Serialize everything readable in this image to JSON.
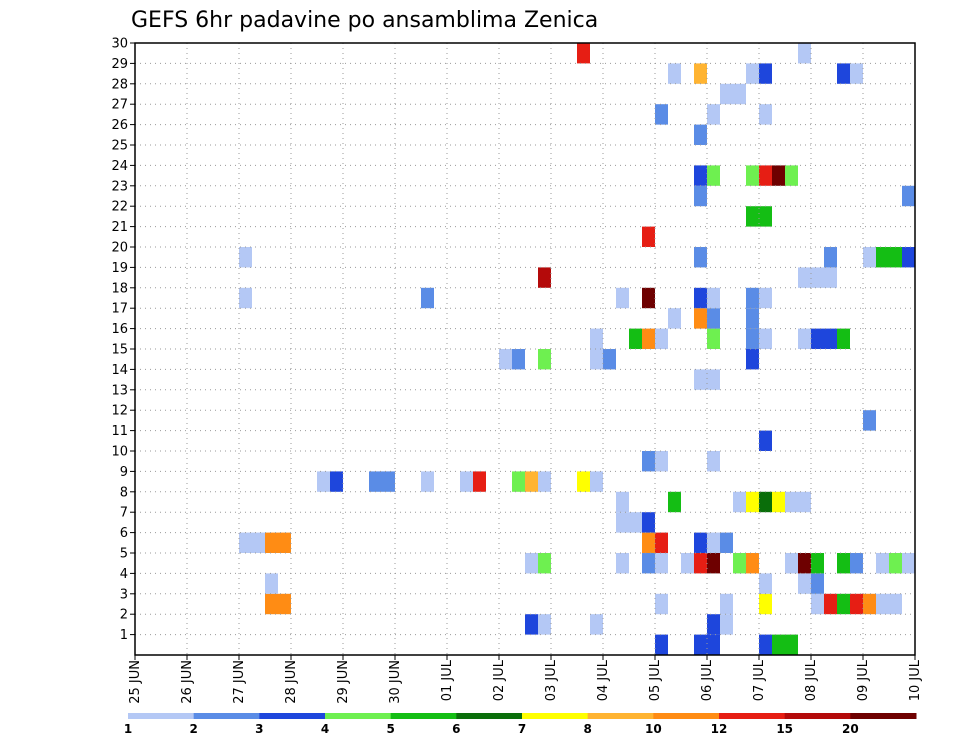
{
  "chart_data": {
    "type": "heatmap",
    "title": "GEFS 6hr padavine po ansamblima Zenica",
    "xlabel": "",
    "ylabel": "",
    "x_ticks": [
      "25 JUN",
      "26 JUN",
      "27 JUN",
      "28 JUN",
      "29 JUN",
      "30 JUN",
      "01 JUL",
      "02 JUL",
      "03 JUL",
      "04 JUL",
      "05 JUL",
      "06 JUL",
      "07 JUL",
      "08 JUL",
      "09 JUL",
      "10 JUL"
    ],
    "y_ticks": [
      "1",
      "2",
      "3",
      "4",
      "5",
      "6",
      "7",
      "8",
      "9",
      "10",
      "11",
      "12",
      "13",
      "14",
      "15",
      "16",
      "17",
      "18",
      "19",
      "20",
      "21",
      "22",
      "23",
      "24",
      "25",
      "26",
      "27",
      "28",
      "29",
      "30"
    ],
    "ylim": [
      0,
      30
    ],
    "time_step_hours": 6,
    "grid": true,
    "legend": {
      "placement": "bottom",
      "labels": [
        "1",
        "2",
        "3",
        "4",
        "5",
        "6",
        "7",
        "8",
        "10",
        "12",
        "15",
        "20"
      ],
      "colors": [
        "#b4c8f5",
        "#5a8ce6",
        "#1e46dc",
        "#6ef050",
        "#14be14",
        "#0a6e0a",
        "#ffff00",
        "#ffb432",
        "#ff8c14",
        "#e61e14",
        "#b40a0a",
        "#6e0000"
      ]
    },
    "cells": [
      {
        "member": 0,
        "time": "05 JUL 00Z",
        "level": 3
      },
      {
        "member": 0,
        "time": "05 JUL 18Z",
        "level": 3
      },
      {
        "member": 0,
        "time": "06 JUL 00Z",
        "level": 3
      },
      {
        "member": 0,
        "time": "07 JUL 00Z",
        "level": 3
      },
      {
        "member": 0,
        "time": "07 JUL 06Z",
        "level": 5
      },
      {
        "member": 0,
        "time": "07 JUL 12Z",
        "level": 5
      },
      {
        "member": 1,
        "time": "02 JUL 12Z",
        "level": 3
      },
      {
        "member": 1,
        "time": "02 JUL 18Z",
        "level": 1
      },
      {
        "member": 1,
        "time": "03 JUL 18Z",
        "level": 1
      },
      {
        "member": 1,
        "time": "06 JUL 00Z",
        "level": 3
      },
      {
        "member": 1,
        "time": "06 JUL 06Z",
        "level": 1
      },
      {
        "member": 2,
        "time": "27 JUN 12Z",
        "level": 10
      },
      {
        "member": 2,
        "time": "27 JUN 18Z",
        "level": 10
      },
      {
        "member": 2,
        "time": "05 JUL 00Z",
        "level": 1
      },
      {
        "member": 2,
        "time": "06 JUL 06Z",
        "level": 1
      },
      {
        "member": 2,
        "time": "07 JUL 00Z",
        "level": 7
      },
      {
        "member": 2,
        "time": "08 JUL 00Z",
        "level": 1
      },
      {
        "member": 2,
        "time": "08 JUL 06Z",
        "level": 12
      },
      {
        "member": 2,
        "time": "08 JUL 12Z",
        "level": 5
      },
      {
        "member": 2,
        "time": "08 JUL 18Z",
        "level": 12
      },
      {
        "member": 2,
        "time": "09 JUL 00Z",
        "level": 10
      },
      {
        "member": 2,
        "time": "09 JUL 06Z",
        "level": 1
      },
      {
        "member": 2,
        "time": "09 JUL 12Z",
        "level": 1
      },
      {
        "member": 3,
        "time": "27 JUN 12Z",
        "level": 1
      },
      {
        "member": 3,
        "time": "07 JUL 00Z",
        "level": 1
      },
      {
        "member": 3,
        "time": "07 JUL 18Z",
        "level": 1
      },
      {
        "member": 3,
        "time": "08 JUL 00Z",
        "level": 2
      },
      {
        "member": 4,
        "time": "02 JUL 12Z",
        "level": 1
      },
      {
        "member": 4,
        "time": "02 JUL 18Z",
        "level": 4
      },
      {
        "member": 4,
        "time": "04 JUL 06Z",
        "level": 1
      },
      {
        "member": 4,
        "time": "04 JUL 18Z",
        "level": 2
      },
      {
        "member": 4,
        "time": "05 JUL 00Z",
        "level": 1
      },
      {
        "member": 4,
        "time": "05 JUL 12Z",
        "level": 1
      },
      {
        "member": 4,
        "time": "05 JUL 18Z",
        "level": 12
      },
      {
        "member": 4,
        "time": "06 JUL 00Z",
        "level": 20
      },
      {
        "member": 4,
        "time": "06 JUL 12Z",
        "level": 4
      },
      {
        "member": 4,
        "time": "06 JUL 18Z",
        "level": 10
      },
      {
        "member": 4,
        "time": "07 JUL 12Z",
        "level": 1
      },
      {
        "member": 4,
        "time": "07 JUL 18Z",
        "level": 20
      },
      {
        "member": 4,
        "time": "08 JUL 00Z",
        "level": 5
      },
      {
        "member": 4,
        "time": "08 JUL 12Z",
        "level": 5
      },
      {
        "member": 4,
        "time": "08 JUL 18Z",
        "level": 2
      },
      {
        "member": 4,
        "time": "09 JUL 06Z",
        "level": 1
      },
      {
        "member": 4,
        "time": "09 JUL 12Z",
        "level": 4
      },
      {
        "member": 4,
        "time": "09 JUL 18Z",
        "level": 1
      },
      {
        "member": 5,
        "time": "27 JUN 00Z",
        "level": 1
      },
      {
        "member": 5,
        "time": "27 JUN 06Z",
        "level": 1
      },
      {
        "member": 5,
        "time": "27 JUN 12Z",
        "level": 10
      },
      {
        "member": 5,
        "time": "27 JUN 18Z",
        "level": 10
      },
      {
        "member": 5,
        "time": "04 JUL 18Z",
        "level": 10
      },
      {
        "member": 5,
        "time": "05 JUL 00Z",
        "level": 12
      },
      {
        "member": 5,
        "time": "05 JUL 18Z",
        "level": 3
      },
      {
        "member": 5,
        "time": "06 JUL 00Z",
        "level": 1
      },
      {
        "member": 5,
        "time": "06 JUL 06Z",
        "level": 2
      },
      {
        "member": 6,
        "time": "04 JUL 06Z",
        "level": 1
      },
      {
        "member": 6,
        "time": "04 JUL 12Z",
        "level": 1
      },
      {
        "member": 6,
        "time": "04 JUL 18Z",
        "level": 3
      },
      {
        "member": 7,
        "time": "04 JUL 06Z",
        "level": 1
      },
      {
        "member": 7,
        "time": "05 JUL 06Z",
        "level": 5
      },
      {
        "member": 7,
        "time": "06 JUL 12Z",
        "level": 1
      },
      {
        "member": 7,
        "time": "06 JUL 18Z",
        "level": 7
      },
      {
        "member": 7,
        "time": "07 JUL 00Z",
        "level": 6
      },
      {
        "member": 7,
        "time": "07 JUL 06Z",
        "level": 7
      },
      {
        "member": 7,
        "time": "07 JUL 12Z",
        "level": 1
      },
      {
        "member": 7,
        "time": "07 JUL 18Z",
        "level": 1
      },
      {
        "member": 8,
        "time": "28 JUN 12Z",
        "level": 1
      },
      {
        "member": 8,
        "time": "28 JUN 18Z",
        "level": 3
      },
      {
        "member": 8,
        "time": "29 JUN 12Z",
        "level": 2
      },
      {
        "member": 8,
        "time": "29 JUN 18Z",
        "level": 2
      },
      {
        "member": 8,
        "time": "30 JUN 12Z",
        "level": 1
      },
      {
        "member": 8,
        "time": "01 JUL 06Z",
        "level": 1
      },
      {
        "member": 8,
        "time": "01 JUL 12Z",
        "level": 12
      },
      {
        "member": 8,
        "time": "02 JUL 06Z",
        "level": 4
      },
      {
        "member": 8,
        "time": "02 JUL 12Z",
        "level": 8
      },
      {
        "member": 8,
        "time": "02 JUL 18Z",
        "level": 1
      },
      {
        "member": 8,
        "time": "03 JUL 12Z",
        "level": 7
      },
      {
        "member": 8,
        "time": "03 JUL 18Z",
        "level": 1
      },
      {
        "member": 9,
        "time": "04 JUL 18Z",
        "level": 2
      },
      {
        "member": 9,
        "time": "05 JUL 00Z",
        "level": 1
      },
      {
        "member": 9,
        "time": "06 JUL 00Z",
        "level": 1
      },
      {
        "member": 10,
        "time": "07 JUL 00Z",
        "level": 3
      },
      {
        "member": 11,
        "time": "09 JUL 00Z",
        "level": 2
      },
      {
        "member": 13,
        "time": "05 JUL 18Z",
        "level": 1
      },
      {
        "member": 13,
        "time": "06 JUL 00Z",
        "level": 1
      },
      {
        "member": 14,
        "time": "02 JUL 00Z",
        "level": 1
      },
      {
        "member": 14,
        "time": "02 JUL 06Z",
        "level": 2
      },
      {
        "member": 14,
        "time": "02 JUL 18Z",
        "level": 4
      },
      {
        "member": 14,
        "time": "03 JUL 18Z",
        "level": 1
      },
      {
        "member": 14,
        "time": "04 JUL 00Z",
        "level": 2
      },
      {
        "member": 14,
        "time": "06 JUL 18Z",
        "level": 3
      },
      {
        "member": 15,
        "time": "03 JUL 18Z",
        "level": 1
      },
      {
        "member": 15,
        "time": "04 JUL 12Z",
        "level": 5
      },
      {
        "member": 15,
        "time": "04 JUL 18Z",
        "level": 10
      },
      {
        "member": 15,
        "time": "05 JUL 00Z",
        "level": 1
      },
      {
        "member": 15,
        "time": "06 JUL 00Z",
        "level": 4
      },
      {
        "member": 15,
        "time": "06 JUL 18Z",
        "level": 2
      },
      {
        "member": 15,
        "time": "07 JUL 00Z",
        "level": 1
      },
      {
        "member": 15,
        "time": "07 JUL 18Z",
        "level": 1
      },
      {
        "member": 15,
        "time": "08 JUL 00Z",
        "level": 3
      },
      {
        "member": 15,
        "time": "08 JUL 06Z",
        "level": 3
      },
      {
        "member": 15,
        "time": "08 JUL 12Z",
        "level": 5
      },
      {
        "member": 16,
        "time": "05 JUL 06Z",
        "level": 1
      },
      {
        "member": 16,
        "time": "05 JUL 18Z",
        "level": 10
      },
      {
        "member": 16,
        "time": "06 JUL 00Z",
        "level": 2
      },
      {
        "member": 16,
        "time": "06 JUL 18Z",
        "level": 2
      },
      {
        "member": 17,
        "time": "27 JUN 00Z",
        "level": 1
      },
      {
        "member": 17,
        "time": "30 JUN 12Z",
        "level": 2
      },
      {
        "member": 17,
        "time": "04 JUL 06Z",
        "level": 1
      },
      {
        "member": 17,
        "time": "04 JUL 18Z",
        "level": 20
      },
      {
        "member": 17,
        "time": "05 JUL 18Z",
        "level": 3
      },
      {
        "member": 17,
        "time": "06 JUL 00Z",
        "level": 1
      },
      {
        "member": 17,
        "time": "06 JUL 18Z",
        "level": 2
      },
      {
        "member": 17,
        "time": "07 JUL 00Z",
        "level": 1
      },
      {
        "member": 18,
        "time": "02 JUL 18Z",
        "level": 15
      },
      {
        "member": 18,
        "time": "07 JUL 18Z",
        "level": 1
      },
      {
        "member": 18,
        "time": "08 JUL 00Z",
        "level": 1
      },
      {
        "member": 18,
        "time": "08 JUL 06Z",
        "level": 1
      },
      {
        "member": 19,
        "time": "27 JUN 00Z",
        "level": 1
      },
      {
        "member": 19,
        "time": "05 JUL 18Z",
        "level": 2
      },
      {
        "member": 19,
        "time": "08 JUL 06Z",
        "level": 2
      },
      {
        "member": 19,
        "time": "09 JUL 00Z",
        "level": 1
      },
      {
        "member": 19,
        "time": "09 JUL 06Z",
        "level": 5
      },
      {
        "member": 19,
        "time": "09 JUL 12Z",
        "level": 5
      },
      {
        "member": 19,
        "time": "09 JUL 18Z",
        "level": 3
      },
      {
        "member": 20,
        "time": "04 JUL 18Z",
        "level": 12
      },
      {
        "member": 21,
        "time": "06 JUL 18Z",
        "level": 5
      },
      {
        "member": 21,
        "time": "07 JUL 00Z",
        "level": 5
      },
      {
        "member": 22,
        "time": "05 JUL 18Z",
        "level": 2
      },
      {
        "member": 22,
        "time": "09 JUL 18Z",
        "level": 2
      },
      {
        "member": 23,
        "time": "05 JUL 18Z",
        "level": 3
      },
      {
        "member": 23,
        "time": "06 JUL 00Z",
        "level": 4
      },
      {
        "member": 23,
        "time": "06 JUL 18Z",
        "level": 4
      },
      {
        "member": 23,
        "time": "07 JUL 00Z",
        "level": 12
      },
      {
        "member": 23,
        "time": "07 JUL 06Z",
        "level": 20
      },
      {
        "member": 23,
        "time": "07 JUL 12Z",
        "level": 4
      },
      {
        "member": 25,
        "time": "05 JUL 18Z",
        "level": 2
      },
      {
        "member": 26,
        "time": "05 JUL 00Z",
        "level": 2
      },
      {
        "member": 26,
        "time": "06 JUL 00Z",
        "level": 1
      },
      {
        "member": 26,
        "time": "07 JUL 00Z",
        "level": 1
      },
      {
        "member": 27,
        "time": "06 JUL 06Z",
        "level": 1
      },
      {
        "member": 27,
        "time": "06 JUL 12Z",
        "level": 1
      },
      {
        "member": 28,
        "time": "05 JUL 06Z",
        "level": 1
      },
      {
        "member": 28,
        "time": "05 JUL 18Z",
        "level": 8
      },
      {
        "member": 28,
        "time": "06 JUL 18Z",
        "level": 1
      },
      {
        "member": 28,
        "time": "07 JUL 00Z",
        "level": 3
      },
      {
        "member": 28,
        "time": "08 JUL 12Z",
        "level": 3
      },
      {
        "member": 28,
        "time": "08 JUL 18Z",
        "level": 1
      },
      {
        "member": 29,
        "time": "03 JUL 12Z",
        "level": 12
      },
      {
        "member": 29,
        "time": "07 JUL 18Z",
        "level": 1
      }
    ]
  }
}
